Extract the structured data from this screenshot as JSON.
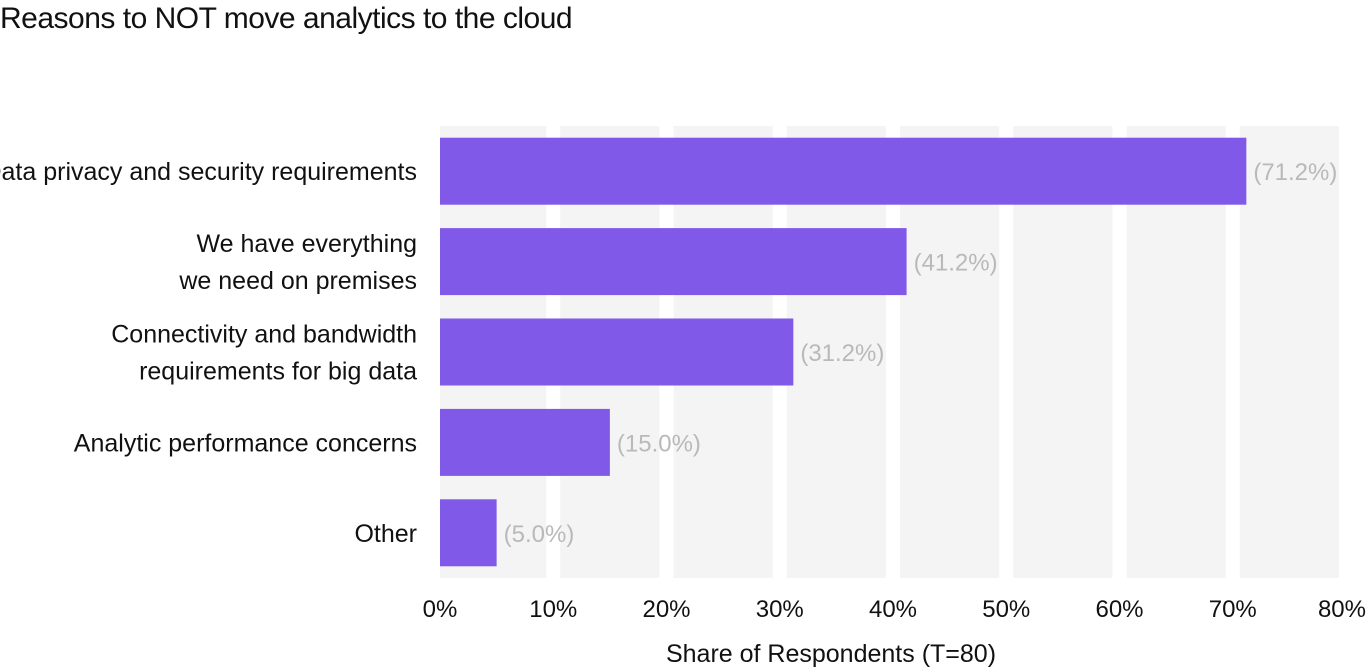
{
  "chart_data": {
    "type": "bar",
    "orientation": "horizontal",
    "title": "Reasons to NOT move analytics to the cloud",
    "xlabel": "Share of Respondents (T=80)",
    "ylabel": "",
    "xlim": [
      0,
      80
    ],
    "x_ticks": [
      "0%",
      "10%",
      "20%",
      "30%",
      "40%",
      "50%",
      "60%",
      "70%",
      "80%"
    ],
    "grid": "vertical bands",
    "bar_color": "#8159e8",
    "band_color": "#f4f4f4",
    "value_label_color": "#b9b9b9",
    "categories": [
      [
        "Data privacy and security requirements"
      ],
      [
        "We have everything",
        "we need on premises"
      ],
      [
        "Connectivity and bandwidth",
        "requirements for big data"
      ],
      [
        "Analytic performance concerns"
      ],
      [
        "Other"
      ]
    ],
    "values": [
      71.2,
      41.2,
      31.2,
      15.0,
      5.0
    ],
    "value_labels": [
      "(71.2%)",
      "(41.2%)",
      "(31.2%)",
      "(15.0%)",
      "(5.0%)"
    ]
  }
}
